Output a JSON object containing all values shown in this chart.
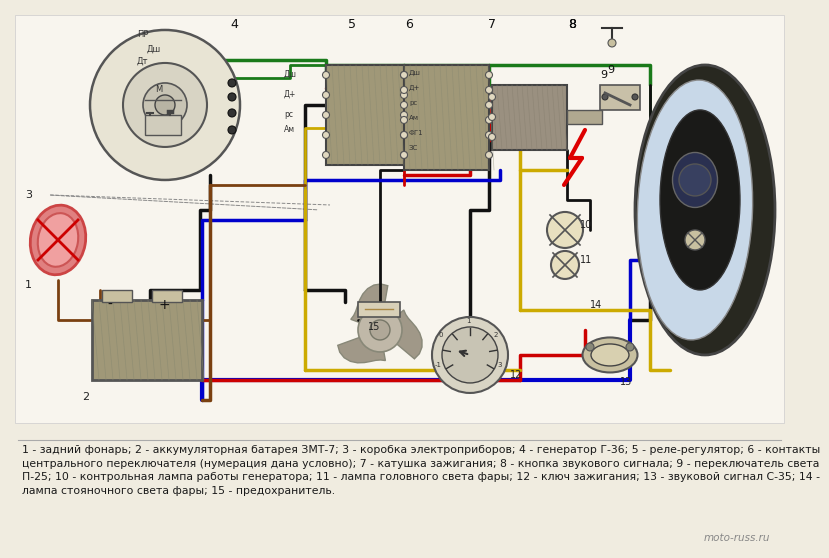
{
  "bg_color": "#f0ece0",
  "caption_lines": [
    "1 - задний фонарь; 2 - аккумуляторная батарея ЗМТ-7; 3 - коробка электроприборов; 4 - генератор Г-36; 5 - реле-регулятор; 6 - контакты",
    "центрального переключателя (нумерация дана условно); 7 - катушка зажигания; 8 - кнопка звукового сигнала; 9 - переключатель света",
    "П-25; 10 - контрольная лампа работы генератора; 11 - лампа головного света фары; 12 - ключ зажигания; 13 - звуковой сигнал С-35; 14 -",
    "лампа стояночного света фары; 15 - предохранитель."
  ],
  "watermark": "moto-russ.ru",
  "wire_colors": {
    "green": "#1a7a1a",
    "black": "#111111",
    "blue": "#0000cc",
    "red": "#cc0000",
    "yellow": "#ccaa00",
    "brown": "#7a4010",
    "gray": "#888880"
  }
}
